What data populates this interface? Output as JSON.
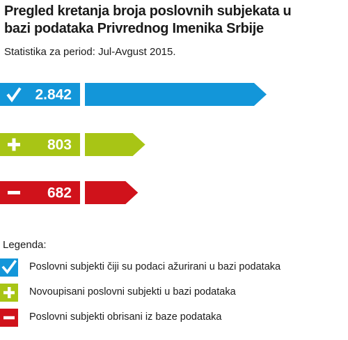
{
  "title_lines": [
    "Pregled kretanja broja poslovnih subjekata u",
    "bazi podataka Privrednog Imenika Srbije"
  ],
  "subtitle": "Statistika za period: Jul-Avgust 2015.",
  "chart_data": {
    "type": "bar",
    "orientation": "horizontal",
    "grid": false,
    "categories": [
      "Poslovni subjekti čiji su podaci ažurirani u bazi podataka",
      "Novoupisani poslovni subjekti u bazi podataka",
      "Poslovni subjekti obrisani iz baze podataka"
    ],
    "values": [
      2842,
      803,
      682
    ],
    "value_labels": [
      "2.842",
      "803",
      "682"
    ],
    "icons": [
      "check-icon",
      "plus-icon",
      "minus-icon"
    ],
    "colors": [
      "#1396d9",
      "#a8c515",
      "#d0121b"
    ]
  },
  "legend": {
    "heading": "Legenda:",
    "items": [
      {
        "icon": "check-icon",
        "label": "Poslovni subjekti čiji su podaci ažurirani u bazi podataka",
        "color": "#1396d9"
      },
      {
        "icon": "plus-icon",
        "label": "Novoupisani poslovni subjekti u bazi podataka",
        "color": "#a8c515"
      },
      {
        "icon": "minus-icon",
        "label": "Poslovni subjekti obrisani iz baze podataka",
        "color": "#d0121b"
      }
    ]
  }
}
